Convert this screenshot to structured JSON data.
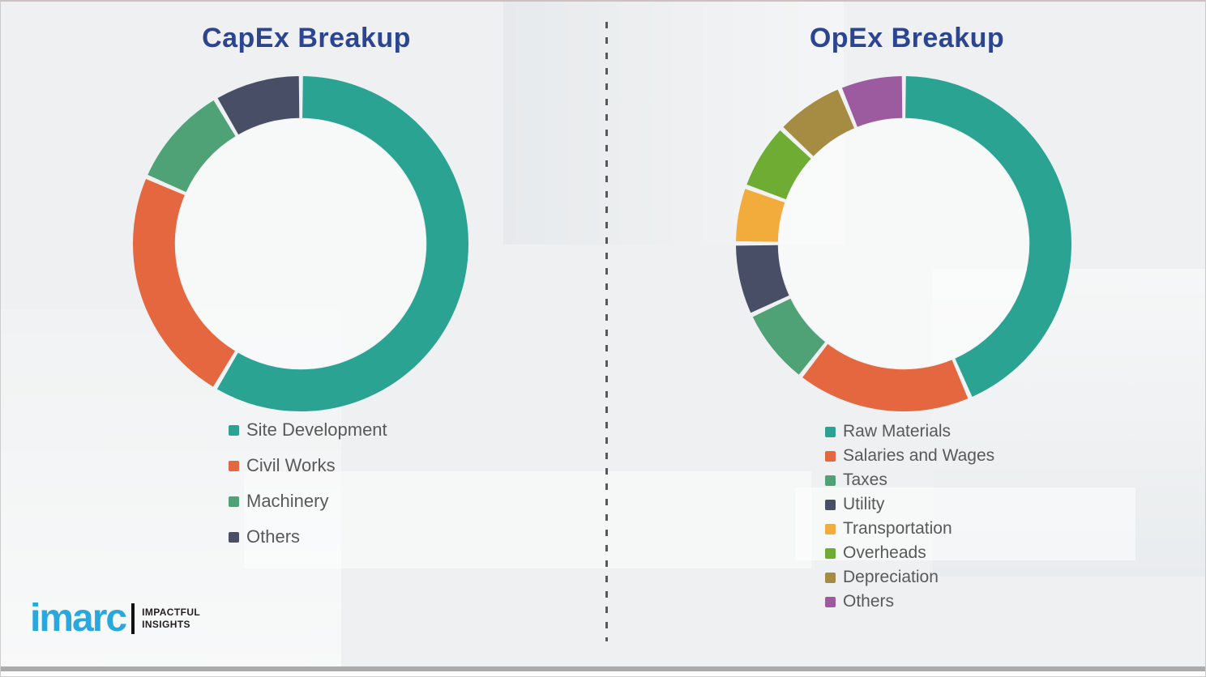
{
  "slide": {
    "brand": {
      "logo_text": "imarc",
      "logo_color": "#29A8E0",
      "tagline_line1": "IMPACTFUL",
      "tagline_line2": "INSIGHTS"
    },
    "title_color": "#2B4590",
    "legend_text_color": "#595959",
    "divider_style": "vertical-dashed"
  },
  "chart_data": [
    {
      "type": "pie",
      "subtype": "donut",
      "title": "CapEx Breakup",
      "units": "percent (estimated from arc angles; no numeric labels shown)",
      "start_angle_deg": 0,
      "direction": "clockwise",
      "legend_position": "below-left",
      "segments": [
        {
          "label": "Site Development",
          "value": 58.5,
          "color": "#2BA392"
        },
        {
          "label": "Civil Works",
          "value": 23.0,
          "color": "#E4673F"
        },
        {
          "label": "Machinery",
          "value": 10.0,
          "color": "#4FA276"
        },
        {
          "label": "Others",
          "value": 8.5,
          "color": "#474E66"
        }
      ]
    },
    {
      "type": "pie",
      "subtype": "donut",
      "title": "OpEx Breakup",
      "units": "percent (estimated from arc angles; no numeric labels shown)",
      "start_angle_deg": 0,
      "direction": "clockwise",
      "legend_position": "below-left",
      "segments": [
        {
          "label": "Raw Materials",
          "value": 43.5,
          "color": "#2BA392"
        },
        {
          "label": "Salaries and Wages",
          "value": 17.0,
          "color": "#E4673F"
        },
        {
          "label": "Taxes",
          "value": 7.5,
          "color": "#4FA276"
        },
        {
          "label": "Utility",
          "value": 7.0,
          "color": "#474E66"
        },
        {
          "label": "Transportation",
          "value": 5.5,
          "color": "#F2AC3C"
        },
        {
          "label": "Overheads",
          "value": 6.5,
          "color": "#6EAC33"
        },
        {
          "label": "Depreciation",
          "value": 6.75,
          "color": "#A68B43"
        },
        {
          "label": "Others",
          "value": 6.25,
          "color": "#9D5B9F"
        }
      ]
    }
  ]
}
